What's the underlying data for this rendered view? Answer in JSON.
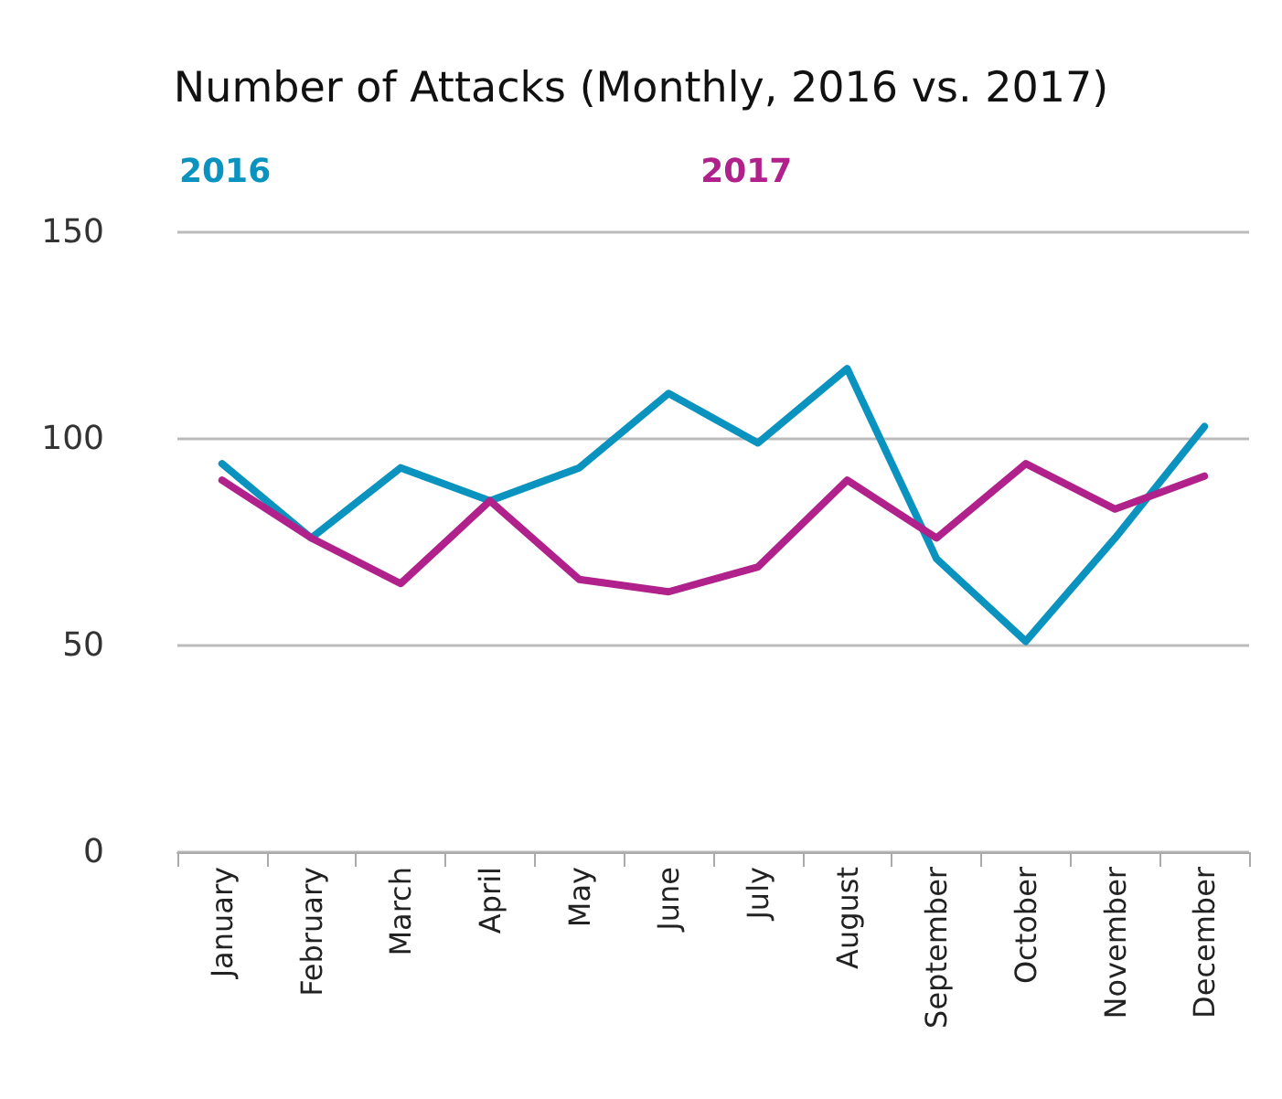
{
  "chart_data": {
    "type": "line",
    "title": "Number of Attacks (Monthly, 2016 vs. 2017)",
    "categories": [
      "January",
      "February",
      "March",
      "April",
      "May",
      "June",
      "July",
      "August",
      "September",
      "October",
      "November",
      "December"
    ],
    "series": [
      {
        "name": "2016",
        "color": "#0a93bf",
        "values": [
          94,
          76,
          93,
          85,
          93,
          111,
          99,
          117,
          71,
          51,
          76,
          103
        ]
      },
      {
        "name": "2017",
        "color": "#b0218c",
        "values": [
          90,
          76,
          65,
          85,
          66,
          63,
          69,
          90,
          76,
          94,
          83,
          91
        ]
      }
    ],
    "ylim": [
      0,
      150
    ],
    "yticks": [
      0,
      50,
      100,
      150
    ],
    "grid": "y",
    "legend": "top left",
    "marker": "none",
    "line_style": "solid"
  }
}
